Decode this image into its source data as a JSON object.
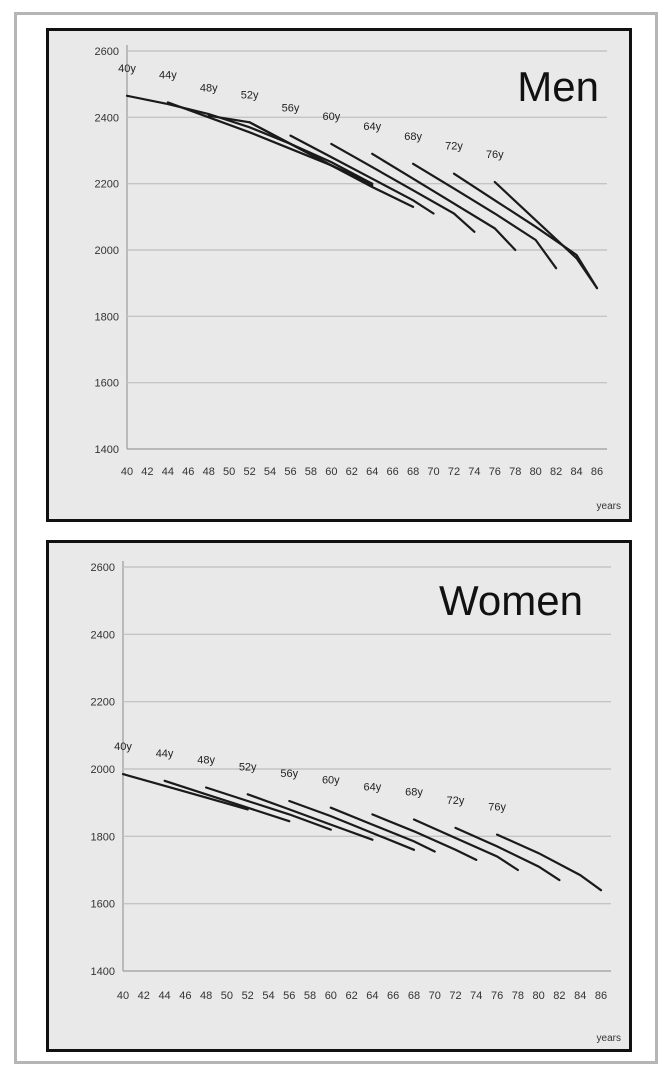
{
  "chart_data": [
    {
      "type": "line",
      "title": "Men",
      "xlabel": "years",
      "ylabel": "",
      "xlim": [
        40,
        86
      ],
      "ylim": [
        1400,
        2600
      ],
      "x_ticks": [
        40,
        42,
        44,
        46,
        48,
        50,
        52,
        54,
        56,
        58,
        60,
        62,
        64,
        66,
        68,
        70,
        72,
        74,
        76,
        78,
        80,
        82,
        84,
        86
      ],
      "y_ticks": [
        1400,
        1600,
        1800,
        2000,
        2200,
        2400,
        2600
      ],
      "grid": true,
      "series": [
        {
          "name": "40y",
          "x": [
            40,
            44,
            48,
            52,
            56,
            60,
            64
          ],
          "y": [
            2465,
            2440,
            2410,
            2370,
            2320,
            2265,
            2200
          ]
        },
        {
          "name": "44y",
          "x": [
            44,
            48,
            52,
            56,
            60,
            64
          ],
          "y": [
            2445,
            2400,
            2355,
            2305,
            2255,
            2200
          ]
        },
        {
          "name": "48y",
          "x": [
            48,
            52,
            56,
            60,
            64
          ],
          "y": [
            2405,
            2385,
            2320,
            2255,
            2195
          ]
        },
        {
          "name": "52y",
          "x": [
            52,
            56,
            60,
            64,
            68
          ],
          "y": [
            2385,
            2320,
            2255,
            2190,
            2130
          ]
        },
        {
          "name": "56y",
          "x": [
            56,
            60,
            64,
            68,
            70
          ],
          "y": [
            2345,
            2280,
            2215,
            2150,
            2110
          ]
        },
        {
          "name": "60y",
          "x": [
            60,
            64,
            68,
            72,
            74
          ],
          "y": [
            2320,
            2250,
            2180,
            2110,
            2055
          ]
        },
        {
          "name": "64y",
          "x": [
            64,
            68,
            72,
            76,
            78
          ],
          "y": [
            2290,
            2215,
            2140,
            2065,
            2000
          ]
        },
        {
          "name": "68y",
          "x": [
            68,
            72,
            76,
            80,
            82
          ],
          "y": [
            2260,
            2185,
            2110,
            2030,
            1945
          ]
        },
        {
          "name": "72y",
          "x": [
            72,
            76,
            80,
            84,
            86
          ],
          "y": [
            2230,
            2150,
            2070,
            1985,
            1885
          ]
        },
        {
          "name": "76y",
          "x": [
            76,
            80,
            84,
            86
          ],
          "y": [
            2205,
            2090,
            1975,
            1885
          ]
        }
      ]
    },
    {
      "type": "line",
      "title": "Women",
      "xlabel": "years",
      "ylabel": "",
      "xlim": [
        40,
        86
      ],
      "ylim": [
        1400,
        2600
      ],
      "x_ticks": [
        40,
        42,
        44,
        46,
        48,
        50,
        52,
        54,
        56,
        58,
        60,
        62,
        64,
        66,
        68,
        70,
        72,
        74,
        76,
        78,
        80,
        82,
        84,
        86
      ],
      "y_ticks": [
        1400,
        1600,
        1800,
        2000,
        2200,
        2400,
        2600
      ],
      "grid": true,
      "series": [
        {
          "name": "40y",
          "x": [
            40,
            44,
            48,
            52
          ],
          "y": [
            1985,
            1950,
            1915,
            1880
          ]
        },
        {
          "name": "44y",
          "x": [
            44,
            48,
            52,
            56
          ],
          "y": [
            1965,
            1925,
            1885,
            1845
          ]
        },
        {
          "name": "48y",
          "x": [
            48,
            52,
            56,
            60
          ],
          "y": [
            1945,
            1905,
            1865,
            1820
          ]
        },
        {
          "name": "52y",
          "x": [
            52,
            56,
            60,
            64
          ],
          "y": [
            1925,
            1880,
            1835,
            1790
          ]
        },
        {
          "name": "56y",
          "x": [
            56,
            60,
            64,
            68
          ],
          "y": [
            1905,
            1860,
            1810,
            1760
          ]
        },
        {
          "name": "60y",
          "x": [
            60,
            64,
            68,
            70
          ],
          "y": [
            1885,
            1835,
            1785,
            1755
          ]
        },
        {
          "name": "64y",
          "x": [
            64,
            68,
            72,
            74
          ],
          "y": [
            1865,
            1815,
            1760,
            1730
          ]
        },
        {
          "name": "68y",
          "x": [
            68,
            72,
            76,
            78
          ],
          "y": [
            1850,
            1795,
            1740,
            1700
          ]
        },
        {
          "name": "72y",
          "x": [
            72,
            76,
            80,
            82
          ],
          "y": [
            1825,
            1770,
            1710,
            1670
          ]
        },
        {
          "name": "76y",
          "x": [
            76,
            80,
            84,
            86
          ],
          "y": [
            1805,
            1750,
            1685,
            1640
          ]
        }
      ]
    }
  ]
}
